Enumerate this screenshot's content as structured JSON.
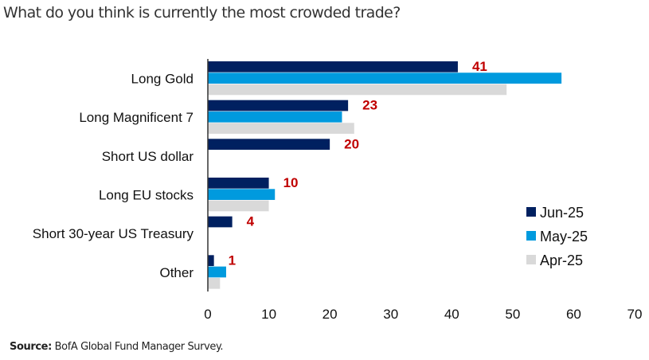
{
  "chart_data": {
    "type": "bar",
    "orientation": "horizontal",
    "title": "What do you think is currently the most crowded trade?",
    "xlabel": "",
    "ylabel": "",
    "categories": [
      "Long Gold",
      "Long Magnificent 7",
      "Short US dollar",
      "Long EU stocks",
      "Short 30-year US Treasury",
      "Other"
    ],
    "series": [
      {
        "name": "Jun-25",
        "color": "#002060",
        "values": [
          41,
          23,
          20,
          10,
          4,
          1
        ]
      },
      {
        "name": "May-25",
        "color": "#009ADE",
        "values": [
          58,
          22,
          null,
          11,
          null,
          3
        ]
      },
      {
        "name": "Apr-25",
        "color": "#D9D9D9",
        "values": [
          49,
          24,
          null,
          10,
          null,
          2
        ]
      }
    ],
    "data_labels": {
      "series": "Jun-25",
      "values": [
        "41",
        "23",
        "20",
        "10",
        "4",
        "1"
      ],
      "color": "#C00000"
    },
    "xlim": [
      0,
      70
    ],
    "xticks": [
      "0",
      "10",
      "20",
      "30",
      "40",
      "50",
      "60",
      "70"
    ],
    "grid": false,
    "legend": {
      "position": "right",
      "entries": [
        "Jun-25",
        "May-25",
        "Apr-25"
      ]
    }
  },
  "source": {
    "label": "Source:",
    "text": " BofA Global Fund Manager Survey."
  }
}
